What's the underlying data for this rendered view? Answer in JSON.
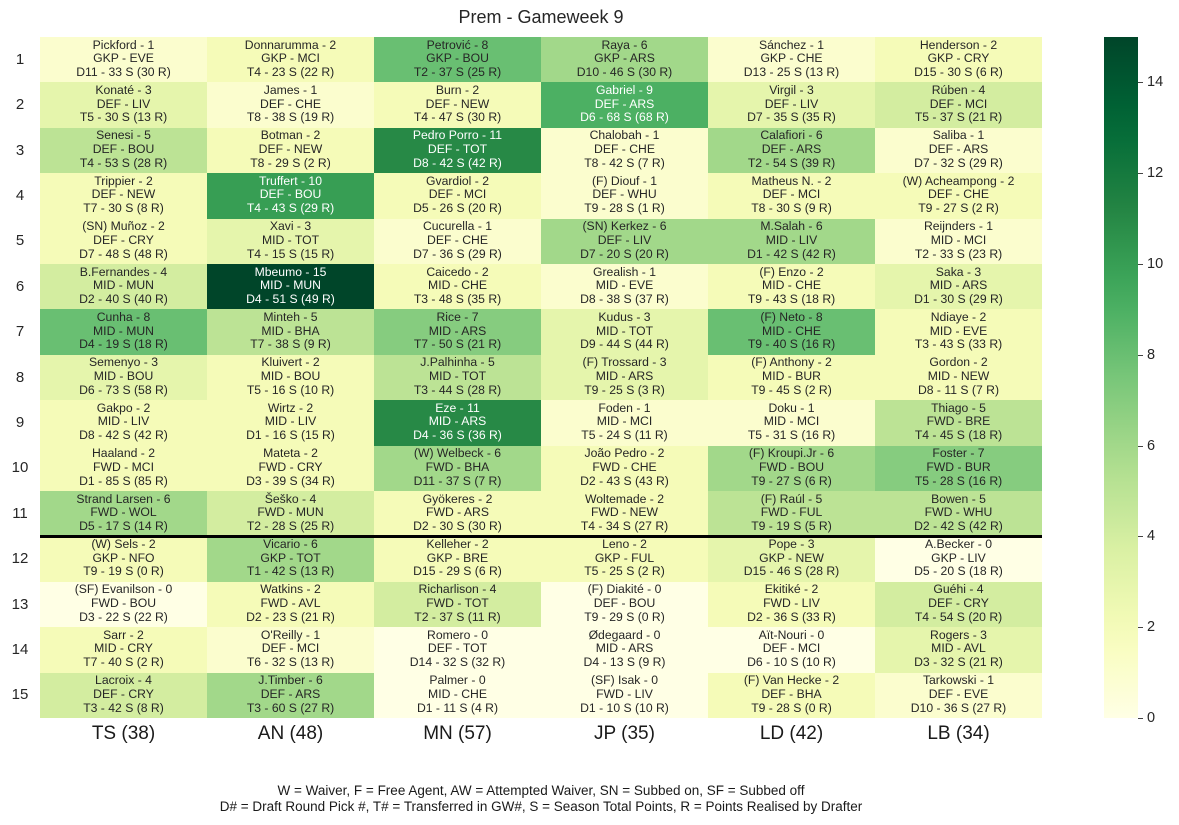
{
  "chart_data": {
    "type": "heatmap",
    "title": "Prem - Gameweek 9",
    "row_labels": [
      "1",
      "2",
      "3",
      "4",
      "5",
      "6",
      "7",
      "8",
      "9",
      "10",
      "11",
      "12",
      "13",
      "14",
      "15"
    ],
    "columns": [
      "TS (38)",
      "AN (48)",
      "MN (57)",
      "JP (35)",
      "LD (42)",
      "LB (34)"
    ],
    "value_range": [
      0,
      15
    ],
    "colormap": "YlGn",
    "colorbar_ticks": [
      0,
      2,
      4,
      6,
      8,
      10,
      12,
      14
    ],
    "divider_after_row": 11,
    "values": [
      [
        1,
        2,
        8,
        6,
        1,
        2
      ],
      [
        3,
        1,
        2,
        9,
        3,
        4
      ],
      [
        5,
        2,
        11,
        1,
        6,
        1
      ],
      [
        2,
        10,
        2,
        1,
        2,
        2
      ],
      [
        2,
        3,
        1,
        6,
        6,
        1
      ],
      [
        4,
        15,
        2,
        1,
        2,
        3
      ],
      [
        8,
        5,
        7,
        3,
        8,
        2
      ],
      [
        3,
        2,
        5,
        3,
        2,
        2
      ],
      [
        2,
        2,
        11,
        1,
        1,
        5
      ],
      [
        2,
        2,
        6,
        2,
        6,
        7
      ],
      [
        6,
        4,
        2,
        2,
        5,
        5
      ],
      [
        2,
        6,
        2,
        2,
        3,
        0
      ],
      [
        0,
        2,
        4,
        0,
        2,
        4
      ],
      [
        2,
        1,
        0,
        0,
        0,
        3
      ],
      [
        4,
        6,
        0,
        0,
        2,
        1
      ]
    ],
    "cells": [
      [
        [
          "Pickford - 1",
          "GKP - EVE",
          "D11 - 33 S (30 R)"
        ],
        [
          "Donnarumma - 2",
          "GKP - MCI",
          "T4 - 23 S (22 R)"
        ],
        [
          "Petrović - 8",
          "GKP - BOU",
          "T2 - 37 S (25 R)"
        ],
        [
          "Raya - 6",
          "GKP - ARS",
          "D10 - 46 S (30 R)"
        ],
        [
          "Sánchez - 1",
          "GKP - CHE",
          "D13 - 25 S (13 R)"
        ],
        [
          "Henderson - 2",
          "GKP - CRY",
          "D15 - 30 S (6 R)"
        ]
      ],
      [
        [
          "Konaté - 3",
          "DEF - LIV",
          "T5 - 30 S (13 R)"
        ],
        [
          "James - 1",
          "DEF - CHE",
          "T8 - 38 S (19 R)"
        ],
        [
          "Burn - 2",
          "DEF - NEW",
          "T4 - 47 S (30 R)"
        ],
        [
          "Gabriel - 9",
          "DEF - ARS",
          "D6 - 68 S (68 R)"
        ],
        [
          "Virgil - 3",
          "DEF - LIV",
          "D7 - 35 S (35 R)"
        ],
        [
          "Rúben - 4",
          "DEF - MCI",
          "T5 - 37 S (21 R)"
        ]
      ],
      [
        [
          "Senesi - 5",
          "DEF - BOU",
          "T4 - 53 S (28 R)"
        ],
        [
          "Botman - 2",
          "DEF - NEW",
          "T8 - 29 S (2 R)"
        ],
        [
          "Pedro Porro - 11",
          "DEF - TOT",
          "D8 - 42 S (42 R)"
        ],
        [
          "Chalobah - 1",
          "DEF - CHE",
          "T8 - 42 S (7 R)"
        ],
        [
          "Calafiori - 6",
          "DEF - ARS",
          "T2 - 54 S (39 R)"
        ],
        [
          "Saliba - 1",
          "DEF - ARS",
          "D7 - 32 S (29 R)"
        ]
      ],
      [
        [
          "Trippier - 2",
          "DEF - NEW",
          "T7 - 30 S (8 R)"
        ],
        [
          "Truffert - 10",
          "DEF - BOU",
          "T4 - 43 S (29 R)"
        ],
        [
          "Gvardiol - 2",
          "DEF - MCI",
          "D5 - 26 S (20 R)"
        ],
        [
          "(F) Diouf - 1",
          "DEF - WHU",
          "T9 - 28 S (1 R)"
        ],
        [
          "Matheus N. - 2",
          "DEF - MCI",
          "T8 - 30 S (9 R)"
        ],
        [
          "(W) Acheampong - 2",
          "DEF - CHE",
          "T9 - 27 S (2 R)"
        ]
      ],
      [
        [
          "(SN) Muñoz - 2",
          "DEF - CRY",
          "D7 - 48 S (48 R)"
        ],
        [
          "Xavi - 3",
          "MID - TOT",
          "T4 - 15 S (15 R)"
        ],
        [
          "Cucurella - 1",
          "DEF - CHE",
          "D7 - 36 S (29 R)"
        ],
        [
          "(SN) Kerkez - 6",
          "DEF - LIV",
          "D7 - 20 S (20 R)"
        ],
        [
          "M.Salah - 6",
          "MID - LIV",
          "D1 - 42 S (42 R)"
        ],
        [
          "Reijnders - 1",
          "MID - MCI",
          "T2 - 33 S (23 R)"
        ]
      ],
      [
        [
          "B.Fernandes - 4",
          "MID - MUN",
          "D2 - 40 S (40 R)"
        ],
        [
          "Mbeumo - 15",
          "MID - MUN",
          "D4 - 51 S (49 R)"
        ],
        [
          "Caicedo - 2",
          "MID - CHE",
          "T3 - 48 S (35 R)"
        ],
        [
          "Grealish - 1",
          "MID - EVE",
          "D8 - 38 S (37 R)"
        ],
        [
          "(F) Enzo - 2",
          "MID - CHE",
          "T9 - 43 S (18 R)"
        ],
        [
          "Saka - 3",
          "MID - ARS",
          "D1 - 30 S (29 R)"
        ]
      ],
      [
        [
          "Cunha - 8",
          "MID - MUN",
          "D4 - 19 S (18 R)"
        ],
        [
          "Minteh - 5",
          "MID - BHA",
          "T7 - 38 S (9 R)"
        ],
        [
          "Rice - 7",
          "MID - ARS",
          "T7 - 50 S (21 R)"
        ],
        [
          "Kudus - 3",
          "MID - TOT",
          "D9 - 44 S (44 R)"
        ],
        [
          "(F) Neto - 8",
          "MID - CHE",
          "T9 - 40 S (16 R)"
        ],
        [
          "Ndiaye - 2",
          "MID - EVE",
          "T3 - 43 S (33 R)"
        ]
      ],
      [
        [
          "Semenyo - 3",
          "MID - BOU",
          "D6 - 73 S (58 R)"
        ],
        [
          "Kluivert - 2",
          "MID - BOU",
          "T5 - 16 S (10 R)"
        ],
        [
          "J.Palhinha - 5",
          "MID - TOT",
          "T3 - 44 S (28 R)"
        ],
        [
          "(F) Trossard - 3",
          "MID - ARS",
          "T9 - 25 S (3 R)"
        ],
        [
          "(F) Anthony - 2",
          "MID - BUR",
          "T9 - 45 S (2 R)"
        ],
        [
          "Gordon - 2",
          "MID - NEW",
          "D8 - 11 S (7 R)"
        ]
      ],
      [
        [
          "Gakpo - 2",
          "MID - LIV",
          "D8 - 42 S (42 R)"
        ],
        [
          "Wirtz - 2",
          "MID - LIV",
          "D1 - 16 S (15 R)"
        ],
        [
          "Eze - 11",
          "MID - ARS",
          "D4 - 36 S (36 R)"
        ],
        [
          "Foden - 1",
          "MID - MCI",
          "T5 - 24 S (11 R)"
        ],
        [
          "Doku - 1",
          "MID - MCI",
          "T5 - 31 S (16 R)"
        ],
        [
          "Thiago - 5",
          "FWD - BRE",
          "T4 - 45 S (18 R)"
        ]
      ],
      [
        [
          "Haaland - 2",
          "FWD - MCI",
          "D1 - 85 S (85 R)"
        ],
        [
          "Mateta - 2",
          "FWD - CRY",
          "D3 - 39 S (34 R)"
        ],
        [
          "(W) Welbeck - 6",
          "FWD - BHA",
          "D11 - 37 S (7 R)"
        ],
        [
          "João Pedro - 2",
          "FWD - CHE",
          "D2 - 43 S (43 R)"
        ],
        [
          "(F) Kroupi.Jr - 6",
          "FWD - BOU",
          "T9 - 27 S (6 R)"
        ],
        [
          "Foster - 7",
          "FWD - BUR",
          "T5 - 28 S (16 R)"
        ]
      ],
      [
        [
          "Strand Larsen - 6",
          "FWD - WOL",
          "D5 - 17 S (14 R)"
        ],
        [
          "Šeško - 4",
          "FWD - MUN",
          "T2 - 28 S (25 R)"
        ],
        [
          "Gyökeres - 2",
          "FWD - ARS",
          "D2 - 30 S (30 R)"
        ],
        [
          "Woltemade - 2",
          "FWD - NEW",
          "T4 - 34 S (27 R)"
        ],
        [
          "(F) Raúl - 5",
          "FWD - FUL",
          "T9 - 19 S (5 R)"
        ],
        [
          "Bowen - 5",
          "FWD - WHU",
          "D2 - 42 S (42 R)"
        ]
      ],
      [
        [
          "(W) Sels - 2",
          "GKP - NFO",
          "T9 - 19 S (0 R)"
        ],
        [
          "Vicario - 6",
          "GKP - TOT",
          "T1 - 42 S (13 R)"
        ],
        [
          "Kelleher - 2",
          "GKP - BRE",
          "D15 - 29 S (6 R)"
        ],
        [
          "Leno - 2",
          "GKP - FUL",
          "T5 - 25 S (2 R)"
        ],
        [
          "Pope - 3",
          "GKP - NEW",
          "D15 - 46 S (28 R)"
        ],
        [
          "A.Becker - 0",
          "GKP - LIV",
          "D5 - 20 S (18 R)"
        ]
      ],
      [
        [
          "(SF) Evanilson - 0",
          "FWD - BOU",
          "D3 - 22 S (22 R)"
        ],
        [
          "Watkins - 2",
          "FWD - AVL",
          "D2 - 23 S (21 R)"
        ],
        [
          "Richarlison - 4",
          "FWD - TOT",
          "T2 - 37 S (11 R)"
        ],
        [
          "(F) Diakité - 0",
          "DEF - BOU",
          "T9 - 29 S (0 R)"
        ],
        [
          "Ekitiké - 2",
          "FWD - LIV",
          "D2 - 36 S (33 R)"
        ],
        [
          "Guéhi - 4",
          "DEF - CRY",
          "T4 - 54 S (20 R)"
        ]
      ],
      [
        [
          "Sarr - 2",
          "MID - CRY",
          "T7 - 40 S (2 R)"
        ],
        [
          "O'Reilly - 1",
          "DEF - MCI",
          "T6 - 32 S (13 R)"
        ],
        [
          "Romero - 0",
          "DEF - TOT",
          "D14 - 32 S (32 R)"
        ],
        [
          "Ødegaard - 0",
          "MID - ARS",
          "D4 - 13 S (9 R)"
        ],
        [
          "Aït-Nouri - 0",
          "DEF - MCI",
          "D6 - 10 S (10 R)"
        ],
        [
          "Rogers - 3",
          "MID - AVL",
          "D3 - 32 S (21 R)"
        ]
      ],
      [
        [
          "Lacroix - 4",
          "DEF - CRY",
          "T3 - 42 S (8 R)"
        ],
        [
          "J.Timber - 6",
          "DEF - ARS",
          "T3 - 60 S (27 R)"
        ],
        [
          "Palmer - 0",
          "MID - CHE",
          "D1 - 11 S (4 R)"
        ],
        [
          "(SF) Isak - 0",
          "FWD - LIV",
          "D1 - 10 S (10 R)"
        ],
        [
          "(F) Van Hecke - 2",
          "DEF - BHA",
          "T9 - 28 S (0 R)"
        ],
        [
          "Tarkowski - 1",
          "DEF - EVE",
          "D10 - 36 S (27 R)"
        ]
      ]
    ]
  },
  "footnote": {
    "line1": "W = Waiver, F = Free Agent, AW = Attempted Waiver, SN = Subbed on, SF = Subbed off",
    "line2": "D# = Draft Round Pick #, T# = Transferred in GW#, S = Season Total Points, R = Points Realised by Drafter"
  }
}
